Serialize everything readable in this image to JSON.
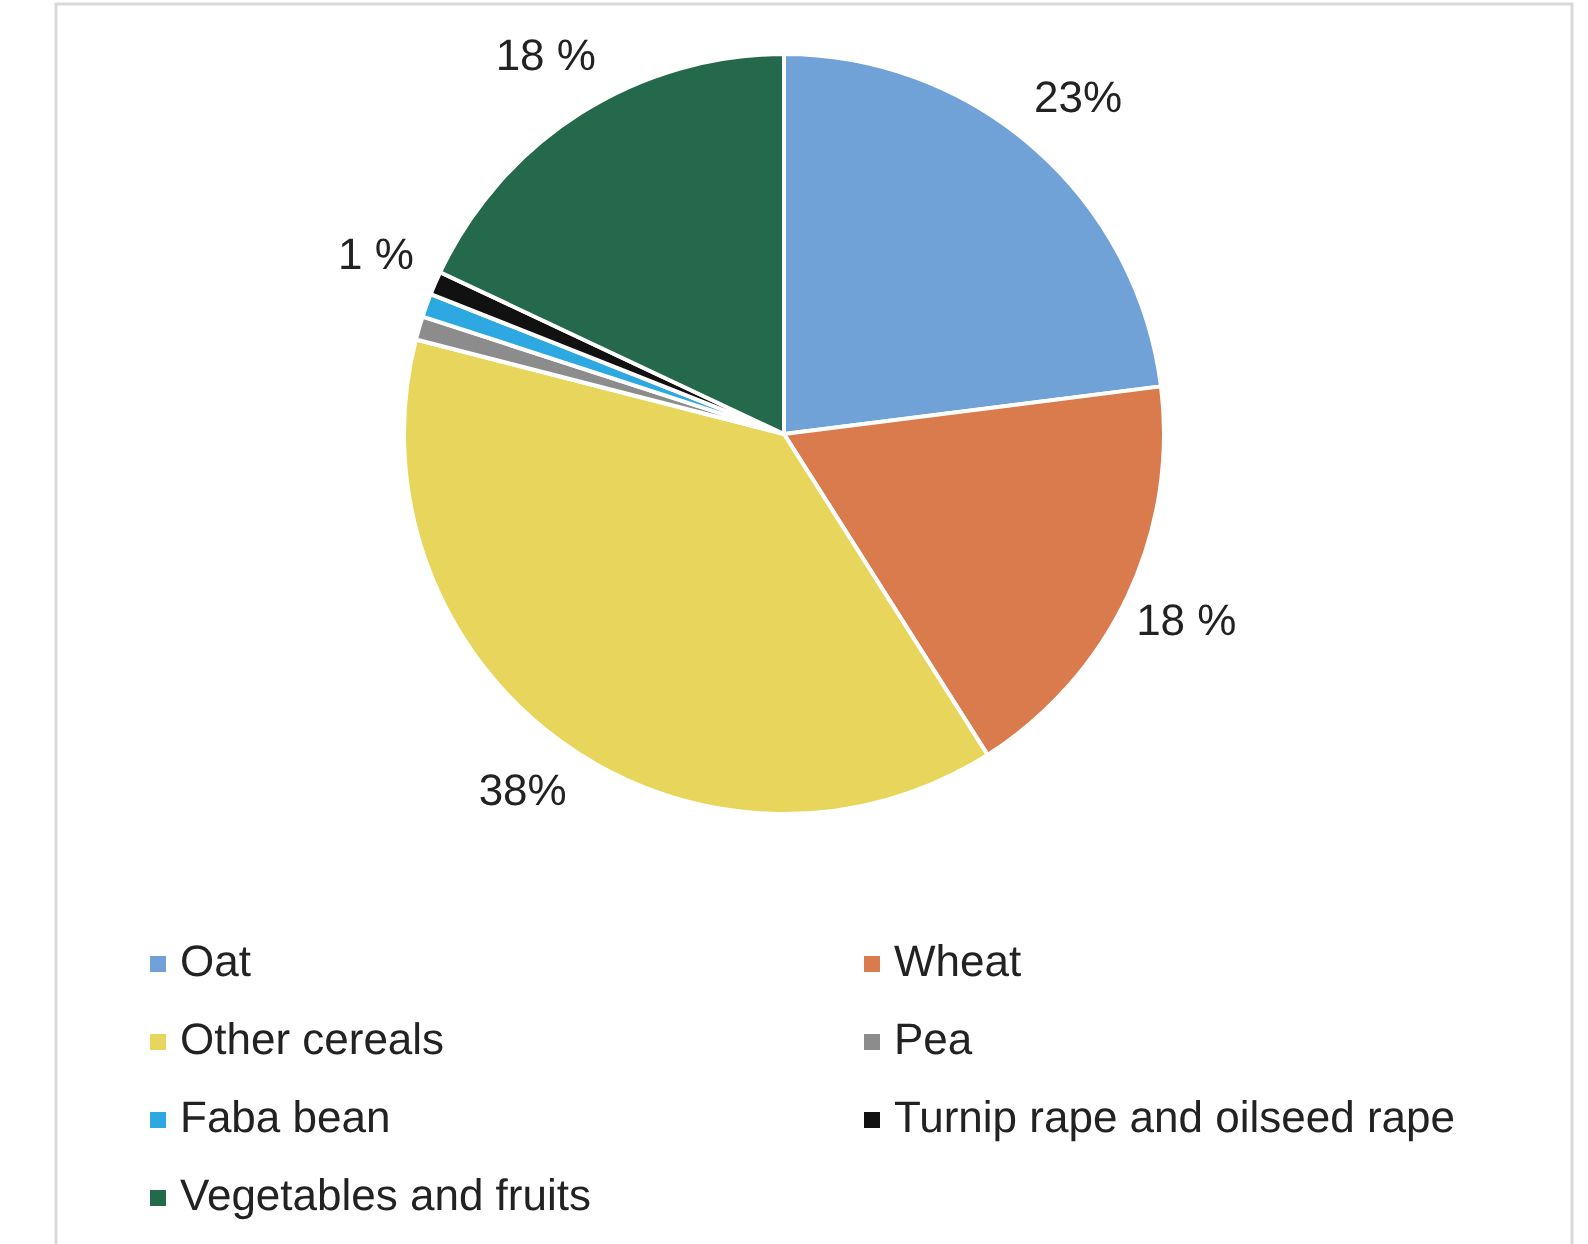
{
  "chart_data": {
    "type": "pie",
    "categories": [
      "Oat",
      "Wheat",
      "Other cereals",
      "Pea",
      "Faba bean",
      "Turnip rape and oilseed rape",
      "Vegetables and fruits"
    ],
    "values": [
      23,
      18,
      38,
      1,
      1,
      1,
      18
    ],
    "colors": [
      "#70a1d7",
      "#d97b4c",
      "#e8d55c",
      "#8c8c8c",
      "#2ea8e0",
      "#111111",
      "#25694d"
    ],
    "value_labels": [
      "23%",
      "18 %",
      "38%",
      null,
      null,
      "1 %",
      "18 %"
    ],
    "legend": "bottom"
  }
}
